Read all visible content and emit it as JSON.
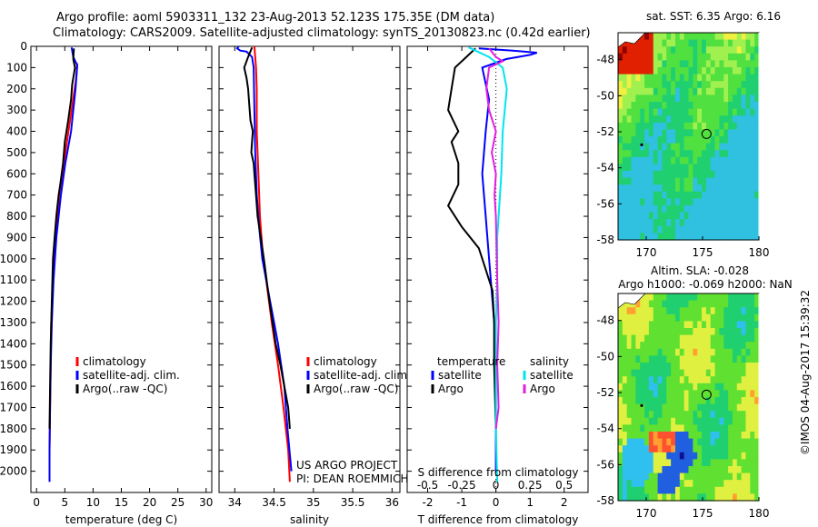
{
  "header": {
    "line1": "Argo profile: aoml 5903311_132 23-Aug-2013 52.123S 175.35E (DM data)",
    "line2": "Climatology: CARS2009. Satellite-adjusted climatology: synTS_20130823.nc (0.42d earlier)"
  },
  "colors": {
    "climatology": "#ff0000",
    "satellite": "#0000ff",
    "argo": "#000000",
    "salinity_satellite": "#00e5ee",
    "salinity_argo": "#e020e0"
  },
  "chart_data": [
    {
      "id": "temperature",
      "type": "line",
      "xlabel": "temperature (deg C)",
      "ylabel": "",
      "xlim": [
        -1,
        31
      ],
      "ylim": [
        2100,
        0
      ],
      "xticks": [
        0,
        5,
        10,
        15,
        20,
        25,
        30
      ],
      "yticks": [
        0,
        100,
        200,
        300,
        400,
        500,
        600,
        700,
        800,
        900,
        1000,
        1100,
        1200,
        1300,
        1400,
        1500,
        1600,
        1700,
        1800,
        1900,
        2000
      ],
      "legend": [
        "climatology",
        "satellite-adj. clim.",
        "Argo(..raw -QC)"
      ],
      "series": [
        {
          "name": "climatology",
          "color": "#ff0000",
          "points": [
            [
              7.2,
              80
            ],
            [
              7.0,
              150
            ],
            [
              6.2,
              300
            ],
            [
              5.1,
              500
            ],
            [
              4.0,
              700
            ],
            [
              3.3,
              900
            ],
            [
              2.9,
              1100
            ],
            [
              2.6,
              1300
            ],
            [
              2.5,
              1500
            ],
            [
              2.4,
              1700
            ],
            [
              2.3,
              1900
            ],
            [
              2.3,
              2050
            ]
          ]
        },
        {
          "name": "satellite-adj. clim.",
          "color": "#0000ff",
          "points": [
            [
              6.2,
              5
            ],
            [
              6.5,
              50
            ],
            [
              7.2,
              90
            ],
            [
              6.9,
              200
            ],
            [
              6.1,
              400
            ],
            [
              5.1,
              550
            ],
            [
              4.3,
              700
            ],
            [
              3.5,
              900
            ],
            [
              3.0,
              1100
            ],
            [
              2.7,
              1300
            ],
            [
              2.5,
              1500
            ],
            [
              2.4,
              1700
            ],
            [
              2.3,
              1900
            ],
            [
              2.3,
              2050
            ]
          ]
        },
        {
          "name": "Argo(..raw -QC)",
          "color": "#000000",
          "points": [
            [
              6.6,
              10
            ],
            [
              6.5,
              60
            ],
            [
              6.8,
              100
            ],
            [
              6.3,
              180
            ],
            [
              6.1,
              250
            ],
            [
              5.6,
              350
            ],
            [
              5.0,
              450
            ],
            [
              4.7,
              550
            ],
            [
              4.2,
              650
            ],
            [
              3.9,
              700
            ],
            [
              3.5,
              800
            ],
            [
              3.2,
              900
            ],
            [
              2.9,
              1000
            ],
            [
              2.7,
              1200
            ],
            [
              2.5,
              1400
            ],
            [
              2.4,
              1600
            ],
            [
              2.3,
              1800
            ]
          ]
        }
      ]
    },
    {
      "id": "salinity",
      "type": "line",
      "xlabel": "salinity",
      "ylabel": "",
      "xlim": [
        33.8,
        36.1
      ],
      "ylim": [
        2100,
        0
      ],
      "xticks": [
        34,
        34.5,
        35,
        35.5,
        36
      ],
      "xticklabels": [
        "34",
        "34.5",
        "35",
        "35.5",
        "36"
      ],
      "legend": [
        "climatology",
        "satellite-adj. clim.",
        "Argo(..raw -QC)"
      ],
      "annotation": [
        "US ARGO PROJECT",
        "PI: DEAN ROEMMICH"
      ],
      "series": [
        {
          "name": "climatology",
          "color": "#ff0000",
          "points": [
            [
              34.25,
              0
            ],
            [
              34.27,
              100
            ],
            [
              34.28,
              200
            ],
            [
              34.28,
              400
            ],
            [
              34.3,
              600
            ],
            [
              34.32,
              800
            ],
            [
              34.35,
              950
            ],
            [
              34.4,
              1100
            ],
            [
              34.47,
              1300
            ],
            [
              34.55,
              1500
            ],
            [
              34.62,
              1700
            ],
            [
              34.68,
              1900
            ],
            [
              34.7,
              2050
            ]
          ]
        },
        {
          "name": "satellite-adj. clim.",
          "color": "#0000ff",
          "points": [
            [
              34.05,
              0
            ],
            [
              34.03,
              10
            ],
            [
              34.07,
              20
            ],
            [
              34.15,
              25
            ],
            [
              34.22,
              50
            ],
            [
              34.24,
              100
            ],
            [
              34.25,
              300
            ],
            [
              34.26,
              500
            ],
            [
              34.28,
              700
            ],
            [
              34.31,
              850
            ],
            [
              34.35,
              1000
            ],
            [
              34.45,
              1200
            ],
            [
              34.55,
              1400
            ],
            [
              34.63,
              1600
            ],
            [
              34.67,
              1800
            ],
            [
              34.72,
              2000
            ]
          ]
        },
        {
          "name": "Argo(..raw -QC)",
          "color": "#000000",
          "points": [
            [
              34.22,
              5
            ],
            [
              34.17,
              50
            ],
            [
              34.12,
              100
            ],
            [
              34.15,
              150
            ],
            [
              34.17,
              200
            ],
            [
              34.19,
              300
            ],
            [
              34.2,
              350
            ],
            [
              34.23,
              400
            ],
            [
              34.22,
              450
            ],
            [
              34.21,
              500
            ],
            [
              34.24,
              550
            ],
            [
              34.25,
              600
            ],
            [
              34.27,
              700
            ],
            [
              34.29,
              800
            ],
            [
              34.33,
              900
            ],
            [
              34.37,
              1000
            ],
            [
              34.44,
              1200
            ],
            [
              34.52,
              1400
            ],
            [
              34.58,
              1500
            ],
            [
              34.63,
              1600
            ],
            [
              34.68,
              1700
            ],
            [
              34.7,
              1800
            ]
          ]
        }
      ]
    },
    {
      "id": "differences",
      "type": "line",
      "xlabel": "T difference from climatology",
      "x2label": "S difference from climatology",
      "xlim": [
        -2.6,
        2.7
      ],
      "x2lim": [
        -0.65,
        0.675
      ],
      "ylim": [
        2100,
        0
      ],
      "xticks": [
        -2,
        -1,
        0,
        1,
        2
      ],
      "x2ticks": [
        -0.5,
        -0.25,
        0,
        0.25,
        0.5
      ],
      "x2ticklabels": [
        "-0.5",
        "-0.25",
        "0",
        "0.25",
        "0.5"
      ],
      "legend_temperature": {
        "title": "temperature",
        "items": [
          "satellite",
          "Argo"
        ]
      },
      "legend_salinity": {
        "title": "salinity",
        "items": [
          "satellite",
          "Argo"
        ]
      },
      "series": [
        {
          "name": "T satellite",
          "color": "#0000ff",
          "axis": "T",
          "points": [
            [
              -0.5,
              10
            ],
            [
              0.5,
              20
            ],
            [
              1.2,
              30
            ],
            [
              1.0,
              40
            ],
            [
              0.3,
              60
            ],
            [
              -0.4,
              100
            ],
            [
              -0.2,
              250
            ],
            [
              -0.3,
              400
            ],
            [
              -0.4,
              600
            ],
            [
              -0.3,
              800
            ],
            [
              -0.2,
              1000
            ],
            [
              -0.1,
              1200
            ],
            [
              0,
              1400
            ],
            [
              0,
              2000
            ]
          ]
        },
        {
          "name": "T Argo",
          "color": "#000000",
          "axis": "T",
          "points": [
            [
              -0.6,
              10
            ],
            [
              -0.8,
              40
            ],
            [
              -1.2,
              100
            ],
            [
              -1.3,
              200
            ],
            [
              -1.4,
              300
            ],
            [
              -1.1,
              400
            ],
            [
              -1.3,
              450
            ],
            [
              -1.1,
              550
            ],
            [
              -1.1,
              650
            ],
            [
              -1.4,
              750
            ],
            [
              -1.0,
              850
            ],
            [
              -0.5,
              950
            ],
            [
              -0.3,
              1050
            ],
            [
              -0.1,
              1150
            ],
            [
              -0.05,
              1300
            ],
            [
              -0.05,
              1500
            ],
            [
              0,
              1800
            ]
          ]
        },
        {
          "name": "S satellite",
          "color": "#00e5ee",
          "axis": "S",
          "points": [
            [
              -0.2,
              5
            ],
            [
              -0.15,
              20
            ],
            [
              -0.05,
              50
            ],
            [
              0.05,
              100
            ],
            [
              0.08,
              200
            ],
            [
              0.05,
              400
            ],
            [
              0.04,
              600
            ],
            [
              0.02,
              800
            ],
            [
              0.01,
              900
            ],
            [
              0.01,
              1000
            ],
            [
              0.01,
              1100
            ],
            [
              0,
              1300
            ],
            [
              0,
              1500
            ],
            [
              0,
              1800
            ],
            [
              0.01,
              2050
            ]
          ]
        },
        {
          "name": "S Argo",
          "color": "#e020e0",
          "axis": "S",
          "points": [
            [
              -0.05,
              10
            ],
            [
              0.0,
              50
            ],
            [
              0.05,
              70
            ],
            [
              -0.05,
              100
            ],
            [
              -0.07,
              200
            ],
            [
              -0.05,
              300
            ],
            [
              0.0,
              400
            ],
            [
              -0.03,
              500
            ],
            [
              0.0,
              600
            ],
            [
              -0.01,
              700
            ],
            [
              0.0,
              800
            ],
            [
              0.01,
              1100
            ],
            [
              0.02,
              1300
            ],
            [
              0.01,
              1500
            ],
            [
              0.02,
              1700
            ],
            [
              0,
              1800
            ]
          ]
        }
      ]
    },
    {
      "id": "sst_map",
      "type": "heatmap",
      "title": "sat. SST: 6.35 Argo: 6.16",
      "xlim": [
        167.5,
        180
      ],
      "ylim": [
        -58,
        -46.5
      ],
      "xticks": [
        170,
        175,
        180
      ],
      "yticks": [
        -48,
        -50,
        -52,
        -54,
        -56,
        -58
      ],
      "marker": {
        "lon": 175.35,
        "lat": -52.12
      },
      "palette": [
        "#30c0e0",
        "#20d070",
        "#50e040",
        "#a0f050",
        "#f0f040",
        "#ffd020",
        "#ff8000",
        "#e02000",
        "#900000"
      ]
    },
    {
      "id": "sla_map",
      "type": "heatmap",
      "title": "Altim. SLA: -0.028",
      "subtitle": "Argo h1000: -0.069 h2000: NaN",
      "xlim": [
        167.5,
        180
      ],
      "ylim": [
        -58,
        -46.5
      ],
      "xticks": [
        170,
        175,
        180
      ],
      "yticks": [
        -48,
        -50,
        -52,
        -54,
        -56,
        -58
      ],
      "marker": {
        "lon": 175.35,
        "lat": -52.12
      },
      "palette": [
        "#101090",
        "#2060e0",
        "#30c0f0",
        "#20d070",
        "#60e030",
        "#e0f040",
        "#ffa030",
        "#ff5030"
      ]
    }
  ],
  "footer": {
    "credit": "©IMOS 04-Aug-2017 15:39:32"
  }
}
